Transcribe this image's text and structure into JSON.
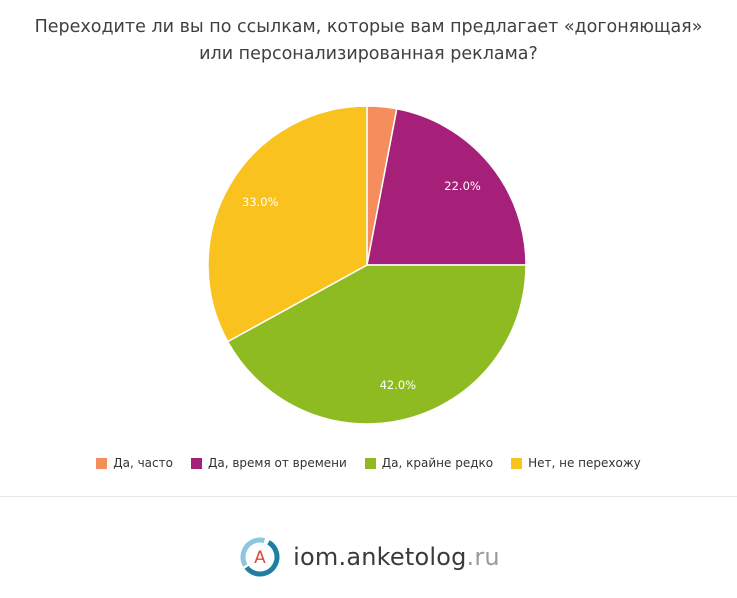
{
  "header": {
    "title_line1": "Переходите ли вы по ссылкам, которые вам предлагает «догоняющая»",
    "title_line2": "или персонализированная реклама?"
  },
  "chart_data": {
    "type": "pie",
    "categories": [
      "Да, часто",
      "Да, время от времени",
      "Да, крайне редко",
      "Нет, не перехожу"
    ],
    "values": [
      3.0,
      22.0,
      42.0,
      33.0
    ],
    "labels": [
      "",
      "22.0%",
      "42.0%",
      "33.0%"
    ],
    "colors": [
      "#f58d5c",
      "#a62079",
      "#8fbb22",
      "#f9c21f"
    ],
    "legend_position": "bottom"
  },
  "legend": {
    "items": [
      {
        "label": "Да, часто",
        "color": "#f58d5c"
      },
      {
        "label": "Да, время от времени",
        "color": "#a62079"
      },
      {
        "label": "Да, крайне редко",
        "color": "#8fbb22"
      },
      {
        "label": "Нет, не перехожу",
        "color": "#f9c21f"
      }
    ]
  },
  "footer": {
    "logo_letter": "A",
    "brand_name": "iom.anketolog",
    "brand_tld": ".ru"
  }
}
